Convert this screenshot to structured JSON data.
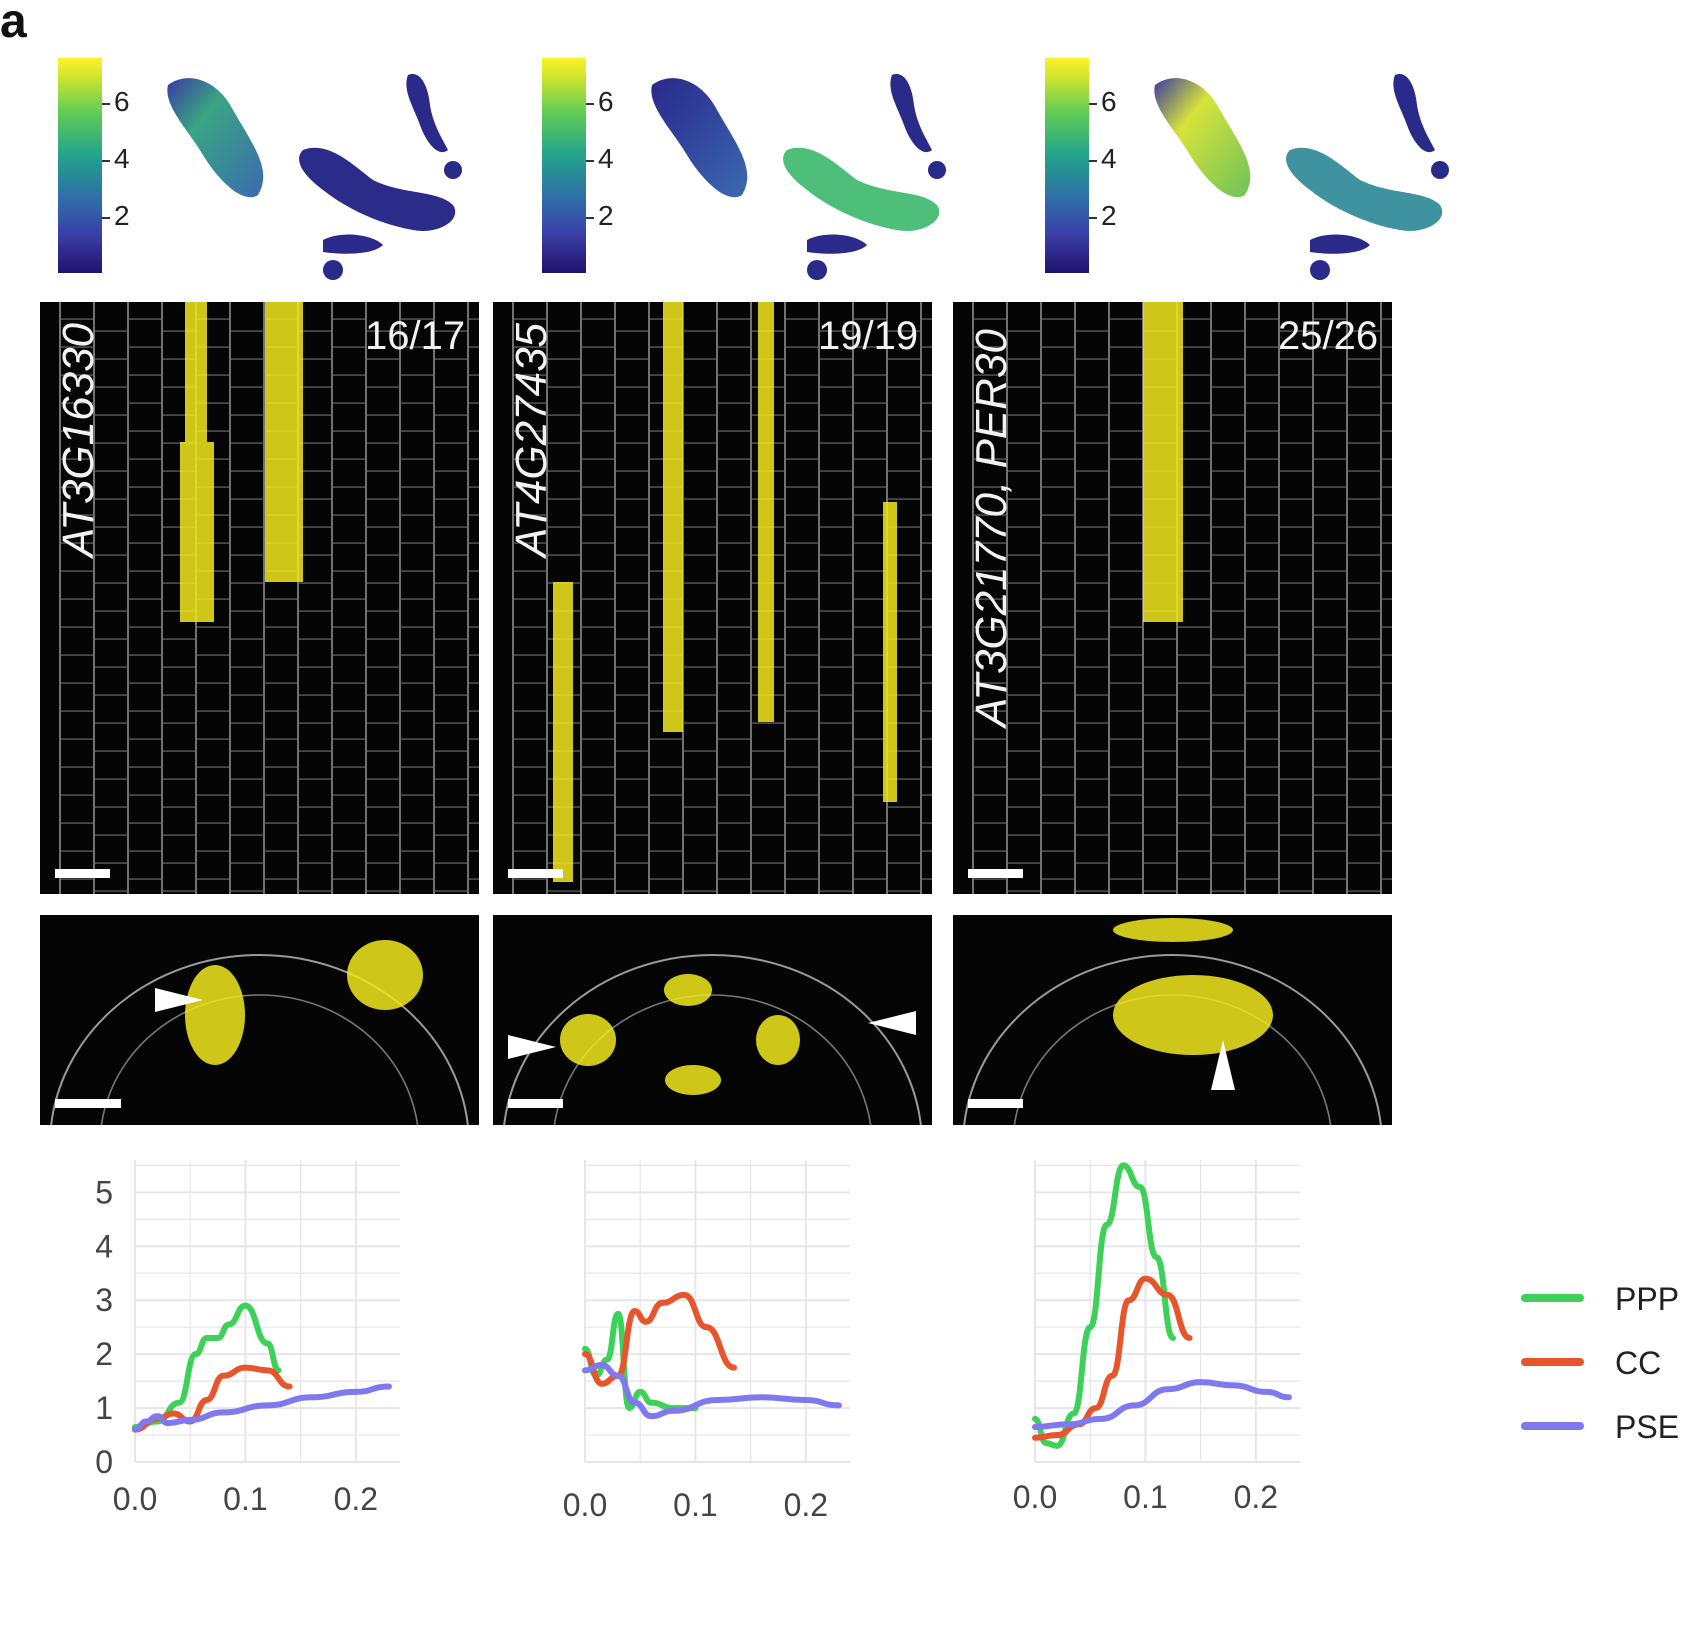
{
  "figure": {
    "panel_label": "a",
    "colorbar_ticks": [
      "6",
      "4",
      "2"
    ],
    "columns": [
      {
        "gene": "AT3G16330",
        "count": "16/17"
      },
      {
        "gene": "AT4G27435",
        "count": "19/19"
      },
      {
        "gene": "AT3G21770, PER30",
        "count": "25/26"
      }
    ]
  },
  "colors": {
    "PPP": "#3dd15a",
    "CC": "#e8542c",
    "PSE": "#7f78ef",
    "fluorescence": "#f2ea1e",
    "grid": "#e6e6e6"
  },
  "chart_data": [
    {
      "type": "line",
      "xlim": [
        0,
        0.24
      ],
      "ylim": [
        0,
        5.6
      ],
      "x_ticks": [
        "0.0",
        "0.1",
        "0.2"
      ],
      "y_ticks": [
        "0",
        "1",
        "2",
        "3",
        "4",
        "5"
      ],
      "legend": "right",
      "series": [
        {
          "name": "PPP",
          "x": [
            0,
            0.02,
            0.04,
            0.055,
            0.065,
            0.075,
            0.085,
            0.1,
            0.12,
            0.13
          ],
          "y": [
            0.65,
            0.75,
            1.1,
            2.0,
            2.3,
            2.3,
            2.55,
            2.9,
            2.2,
            1.7
          ]
        },
        {
          "name": "CC",
          "x": [
            0,
            0.02,
            0.035,
            0.05,
            0.065,
            0.08,
            0.1,
            0.12,
            0.14
          ],
          "y": [
            0.6,
            0.8,
            0.9,
            0.75,
            1.15,
            1.6,
            1.75,
            1.7,
            1.4
          ]
        },
        {
          "name": "PSE",
          "x": [
            0,
            0.01,
            0.02,
            0.03,
            0.05,
            0.08,
            0.12,
            0.16,
            0.2,
            0.23
          ],
          "y": [
            0.6,
            0.75,
            0.85,
            0.72,
            0.78,
            0.92,
            1.05,
            1.2,
            1.3,
            1.4
          ]
        }
      ]
    },
    {
      "type": "line",
      "xlim": [
        0,
        0.24
      ],
      "ylim": [
        0,
        5.6
      ],
      "x_ticks": [
        "0.0",
        "0.1",
        "0.2"
      ],
      "y_ticks": [],
      "legend": "none",
      "series": [
        {
          "name": "PPP",
          "x": [
            0,
            0.01,
            0.02,
            0.03,
            0.04,
            0.05,
            0.06,
            0.08,
            0.1
          ],
          "y": [
            2.1,
            1.6,
            1.9,
            2.75,
            1.0,
            1.3,
            1.1,
            1.0,
            1.0
          ]
        },
        {
          "name": "CC",
          "x": [
            0,
            0.015,
            0.03,
            0.045,
            0.055,
            0.07,
            0.09,
            0.11,
            0.135
          ],
          "y": [
            2.0,
            1.45,
            1.6,
            2.8,
            2.6,
            2.95,
            3.1,
            2.5,
            1.75
          ]
        },
        {
          "name": "PSE",
          "x": [
            0,
            0.015,
            0.03,
            0.045,
            0.06,
            0.08,
            0.12,
            0.16,
            0.2,
            0.23
          ],
          "y": [
            1.7,
            1.8,
            1.6,
            1.1,
            0.85,
            0.95,
            1.15,
            1.2,
            1.15,
            1.05
          ]
        }
      ]
    },
    {
      "type": "line",
      "xlim": [
        0,
        0.24
      ],
      "ylim": [
        0,
        5.6
      ],
      "x_ticks": [
        "0.0",
        "0.1",
        "0.2"
      ],
      "y_ticks": [],
      "legend": "none",
      "series": [
        {
          "name": "PPP",
          "x": [
            0,
            0.01,
            0.02,
            0.035,
            0.05,
            0.065,
            0.08,
            0.095,
            0.11,
            0.125
          ],
          "y": [
            0.8,
            0.35,
            0.3,
            0.9,
            2.5,
            4.4,
            5.5,
            5.1,
            3.8,
            2.3
          ]
        },
        {
          "name": "CC",
          "x": [
            0,
            0.02,
            0.04,
            0.055,
            0.07,
            0.085,
            0.1,
            0.12,
            0.14
          ],
          "y": [
            0.45,
            0.5,
            0.7,
            1.0,
            1.6,
            3.0,
            3.4,
            3.1,
            2.3
          ]
        },
        {
          "name": "PSE",
          "x": [
            0,
            0.03,
            0.06,
            0.09,
            0.12,
            0.15,
            0.18,
            0.21,
            0.23
          ],
          "y": [
            0.65,
            0.7,
            0.8,
            1.05,
            1.35,
            1.48,
            1.42,
            1.3,
            1.2
          ]
        }
      ]
    }
  ]
}
